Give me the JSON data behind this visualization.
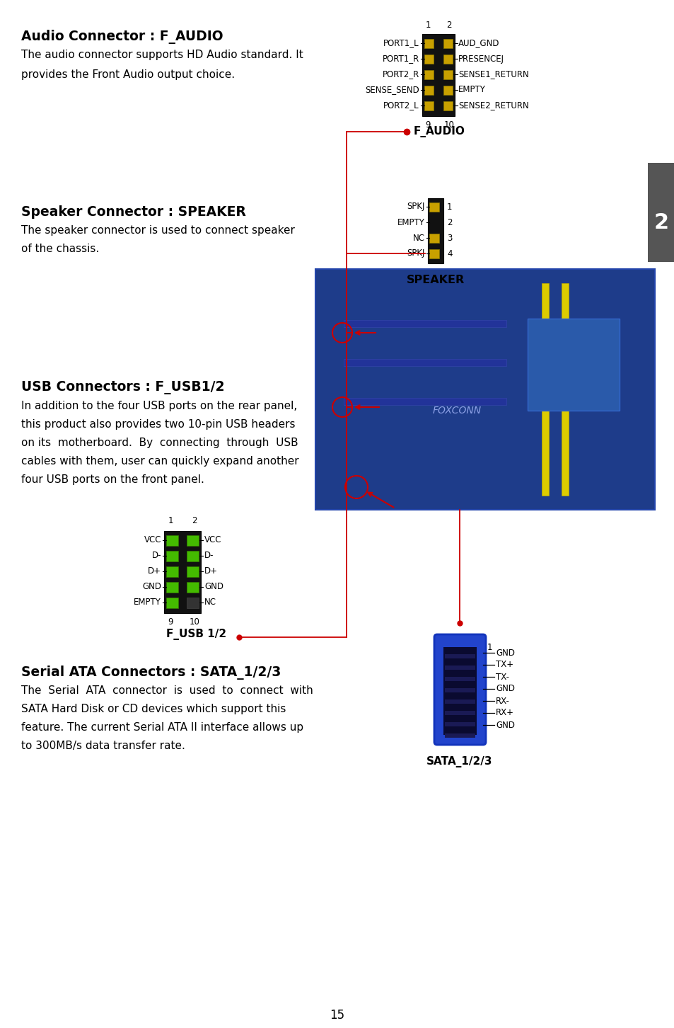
{
  "bg_color": "#ffffff",
  "page_number": "15",
  "tab_color": "#555555",
  "tab_text": "2",
  "section1_title": "Audio Connector : F_AUDIO",
  "section1_body_line1": "The audio connector supports HD Audio standard. It",
  "section1_body_line2": "provides the Front Audio output choice.",
  "faudio_pins_left": [
    "PORT1_L",
    "PORT1_R",
    "PORT2_R",
    "SENSE_SEND",
    "PORT2_L"
  ],
  "faudio_pins_right": [
    "AUD_GND",
    "PRESENCEJ",
    "SENSE1_RETURN",
    "EMPTY",
    "SENSE2_RETURN"
  ],
  "faudio_label": "F_AUDIO",
  "section2_title": "Speaker Connector : SPEAKER",
  "section2_body_line1": "The speaker connector is used to connect speaker",
  "section2_body_line2": "of the chassis.",
  "speaker_pins_left": [
    "SPKJ",
    "EMPTY",
    "NC",
    "SPKJ"
  ],
  "speaker_pin_nums": [
    "1",
    "2",
    "3",
    "4"
  ],
  "speaker_label": "SPEAKER",
  "section3_title": "USB Connectors : F_USB1/2",
  "section3_body_line1": "In addition to the four USB ports on the rear panel,",
  "section3_body_line2": "this product also provides two 10-pin USB headers",
  "section3_body_line3": "on its  motherboard.  By  connecting  through  USB",
  "section3_body_line4": "cables with them, user can quickly expand another",
  "section3_body_line5": "four USB ports on the front panel.",
  "fusb_pins_left": [
    "VCC",
    "D-",
    "D+",
    "GND",
    "EMPTY"
  ],
  "fusb_pins_right": [
    "VCC",
    "D-",
    "D+",
    "GND",
    "NC"
  ],
  "fusb_label": "F_USB 1/2",
  "section4_title": "Serial ATA Connectors : SATA_1/2/3",
  "section4_body_line1": "The  Serial  ATA  connector  is  used  to  connect  with",
  "section4_body_line2": "SATA Hard Disk or CD devices which support this",
  "section4_body_line3": "feature. The current Serial ATA II interface allows up",
  "section4_body_line4": "to 300MB/s data transfer rate.",
  "sata_pins": [
    "GND",
    "TX+",
    "TX-",
    "GND",
    "RX-",
    "RX+",
    "GND"
  ],
  "sata_label": "SATA_1/2/3",
  "red_color": "#cc0000",
  "connector_dark": "#111111",
  "pin_yellow": "#c8a000",
  "pin_green": "#44bb00",
  "sata_blue": "#2244cc",
  "sata_inner": "#0a0a30"
}
